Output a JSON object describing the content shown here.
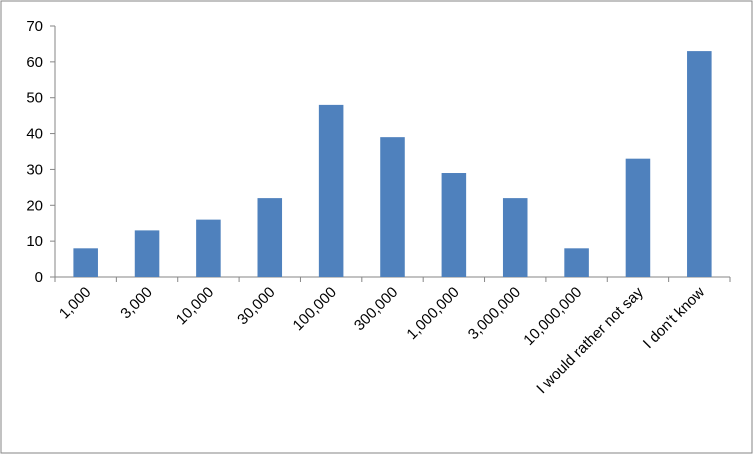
{
  "chart_data": {
    "type": "bar",
    "categories": [
      "1,000",
      "3,000",
      "10,000",
      "30,000",
      "100,000",
      "300,000",
      "1,000,000",
      "3,000,000",
      "10,000,000",
      "I would rather not say",
      "I don't know"
    ],
    "values": [
      8,
      13,
      16,
      22,
      48,
      39,
      29,
      22,
      8,
      33,
      63
    ],
    "color": "#4f81bd",
    "ylim": [
      0,
      70
    ],
    "yticks": [
      0,
      10,
      20,
      30,
      40,
      50,
      60,
      70
    ],
    "grid": false
  }
}
